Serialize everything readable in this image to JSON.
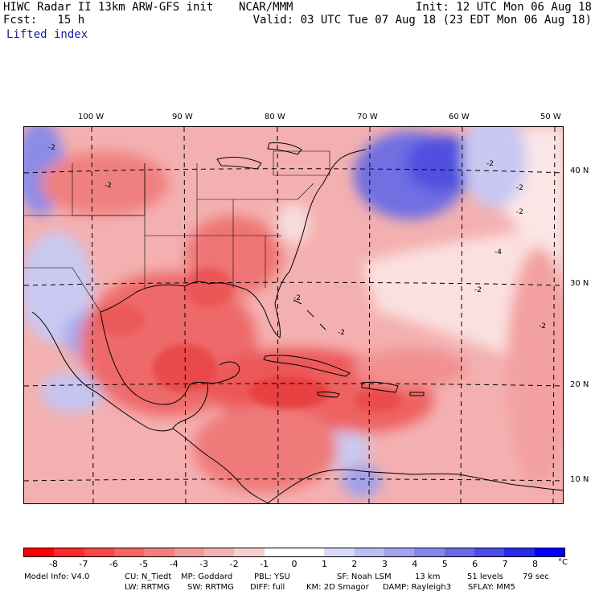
{
  "header": {
    "left_line1": "HIWC Radar II 13km ARW-GFS init",
    "left_line2": "Fcst:   15 h",
    "center": "NCAR/MMM",
    "right_line1": "Init: 12 UTC Mon 06 Aug 18",
    "right_line2": "Valid: 03 UTC Tue 07 Aug 18 (23 EDT Mon 06 Aug 18)",
    "field_name": "Lifted index"
  },
  "map": {
    "lon_labels": [
      "100 W",
      "90 W",
      "80 W",
      "70 W",
      "60 W",
      "50 W"
    ],
    "lat_labels": [
      "40 N",
      "30 N",
      "20 N",
      "10 N"
    ],
    "contour_labels": [
      "-2",
      "-2",
      "-2",
      "-2",
      "-2",
      "-2",
      "-2",
      "-4",
      "-2",
      "-2"
    ]
  },
  "colorbar": {
    "labels": [
      "-8",
      "-7",
      "-6",
      "-5",
      "-4",
      "-3",
      "-2",
      "-1",
      "0",
      "1",
      "2",
      "3",
      "4",
      "5",
      "6",
      "7",
      "8"
    ],
    "unit": "°C",
    "colors": [
      "#ff0000",
      "#fc2a2a",
      "#f94848",
      "#f66464",
      "#f47e7e",
      "#f29999",
      "#f4b3b3",
      "#f8cfcf",
      "#ffffff",
      "#ffffff",
      "#d9d9f9",
      "#bdbdf5",
      "#a2a2ef",
      "#8686ea",
      "#6a6ae6",
      "#4c4ce6",
      "#2a2aea",
      "#0000ff"
    ]
  },
  "model_info": {
    "row1_col1": "Model Info: V4.0",
    "row1_col2": "CU: N_Tiedt",
    "row1_col3": "MP: Goddard",
    "row1_col4": "PBL: YSU",
    "row1_col5": "SF: Noah LSM",
    "row1_col6": "13 km",
    "row1_col7": "51 levels",
    "row1_col8": "79 sec",
    "row2_col1": "LW: RRTMG",
    "row2_col2": "SW: RRTMG",
    "row2_col3": "DIFF: full",
    "row2_col4": "KM: 2D Smagor",
    "row2_col5": "DAMP: Rayleigh3",
    "row2_col6": "SFLAY: MM5"
  }
}
